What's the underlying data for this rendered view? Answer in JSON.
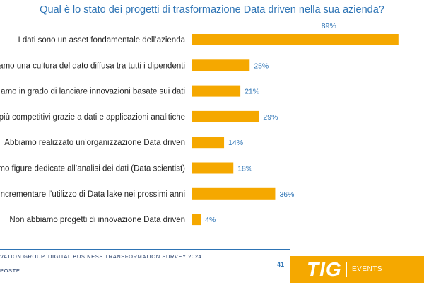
{
  "chart_data": {
    "type": "bar",
    "orientation": "horizontal",
    "title": "Qual è lo stato dei progetti di trasformazione Data driven nella sua azienda?",
    "categories": [
      "I dati sono un asset fondamentale dell’azienda",
      "amo una cultura del dato diffusa tra tutti i dipendenti",
      "amo in grado di lanciare innovazioni basate sui dati",
      "più competitivi grazie a dati e applicazioni analitiche",
      "Abbiamo realizzato un’organizzazione Data driven",
      "mo figure dedicate all’analisi dei dati (Data scientist)",
      "incrementare l’utilizzo di Data lake nei prossimi anni",
      "Non abbiamo progetti di innovazione Data driven"
    ],
    "values": [
      89,
      25,
      21,
      29,
      14,
      18,
      36,
      4
    ],
    "value_labels": [
      "89%",
      "25%",
      "21%",
      "29%",
      "14%",
      "18%",
      "36%",
      "4%"
    ],
    "unit": "%",
    "xlim": [
      0,
      100
    ],
    "bar_color": "#f5a800",
    "label_color": "#2e74b5",
    "grid": false
  },
  "footer": {
    "source": "VATION GROUP, DIGITAL BUSINESS TRANSFORMATION SURVEY 2024",
    "note": "POSTE",
    "page_number": "41"
  },
  "logo": {
    "mark": "TIG",
    "sub": "EVENTS",
    "color": "#f5a800"
  }
}
